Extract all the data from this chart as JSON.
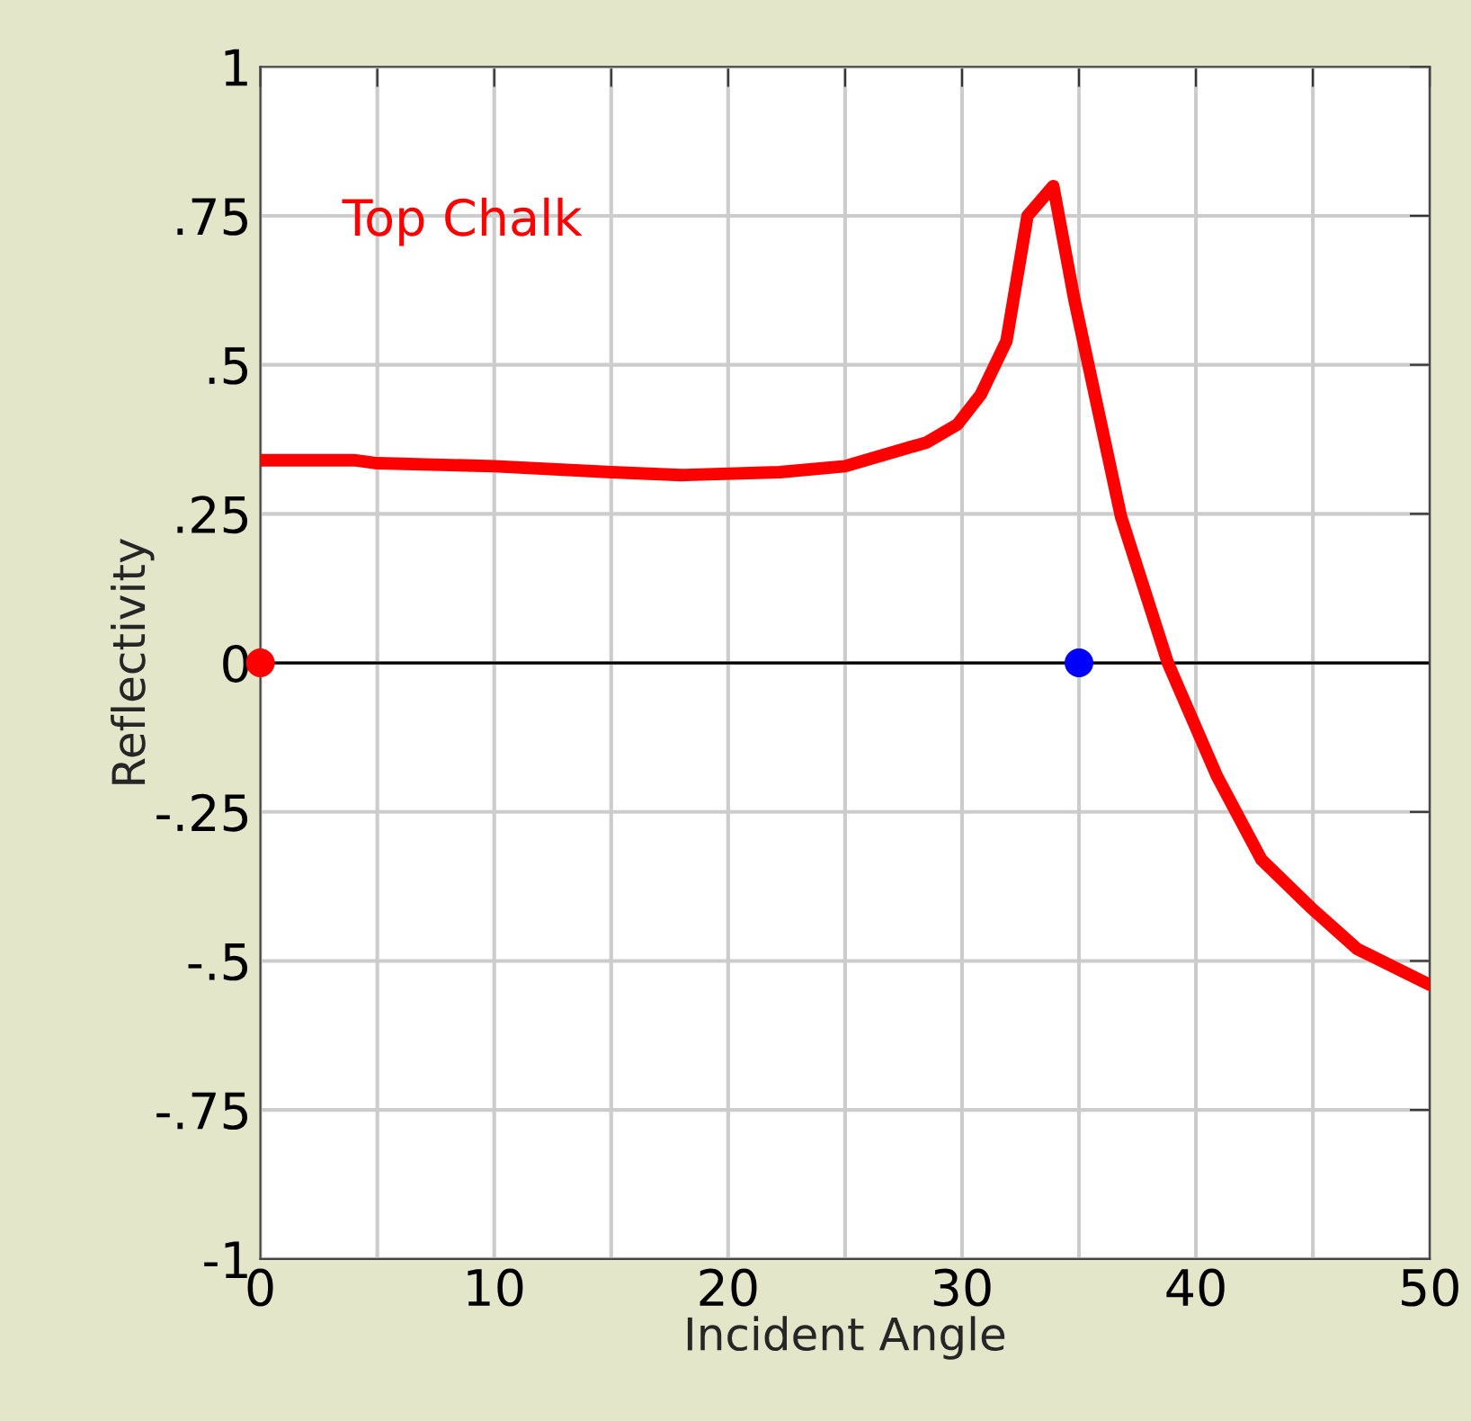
{
  "chart_data": {
    "type": "line",
    "xlabel": "Incident Angle",
    "ylabel": "Reflectivity",
    "series": [
      {
        "name": "Top Chalk",
        "color": "#ff0000",
        "x": [
          0,
          4,
          5,
          10,
          15,
          18,
          22.2,
          25,
          28.5,
          29.8,
          30.8,
          31.9,
          32.8,
          33.9,
          34.8,
          36.8,
          38.8,
          40.9,
          42.8,
          44.9,
          46.9,
          50
        ],
        "values": [
          0.34,
          0.34,
          0.335,
          0.33,
          0.32,
          0.315,
          0.32,
          0.33,
          0.37,
          0.4,
          0.45,
          0.54,
          0.75,
          0.8,
          0.61,
          0.245,
          0,
          -0.19,
          -0.33,
          -0.41,
          -0.48,
          -0.54
        ]
      },
      {
        "type": "scatter",
        "x": [
          0,
          35
        ],
        "values": [
          0,
          0
        ],
        "colors": [
          "#ff0000",
          "#0000ff"
        ]
      }
    ],
    "xlim": [
      0,
      50
    ],
    "ylim": [
      -1,
      1
    ],
    "xticks": [
      0,
      {
        "value": 5,
        "label": null
      },
      10,
      {
        "value": 15,
        "label": null
      },
      20,
      {
        "value": 25,
        "label": null
      },
      30,
      {
        "value": 35,
        "label": null
      },
      40,
      {
        "value": 45,
        "label": null
      },
      50
    ],
    "yticks": [
      {
        "value": -1,
        "label": "-1"
      },
      {
        "value": -0.75,
        "label": "-.75"
      },
      {
        "value": -0.5,
        "label": "-.5"
      },
      {
        "value": -0.25,
        "label": "-.25"
      },
      0,
      {
        "value": 0.25,
        "label": ".25"
      },
      {
        "value": 0.5,
        "label": ".5"
      },
      {
        "value": 0.75,
        "label": ".75"
      },
      1
    ],
    "ref_lines": [
      {
        "axis": "y",
        "value": 0,
        "color": "#000000"
      }
    ],
    "grid": true,
    "legend": false
  }
}
